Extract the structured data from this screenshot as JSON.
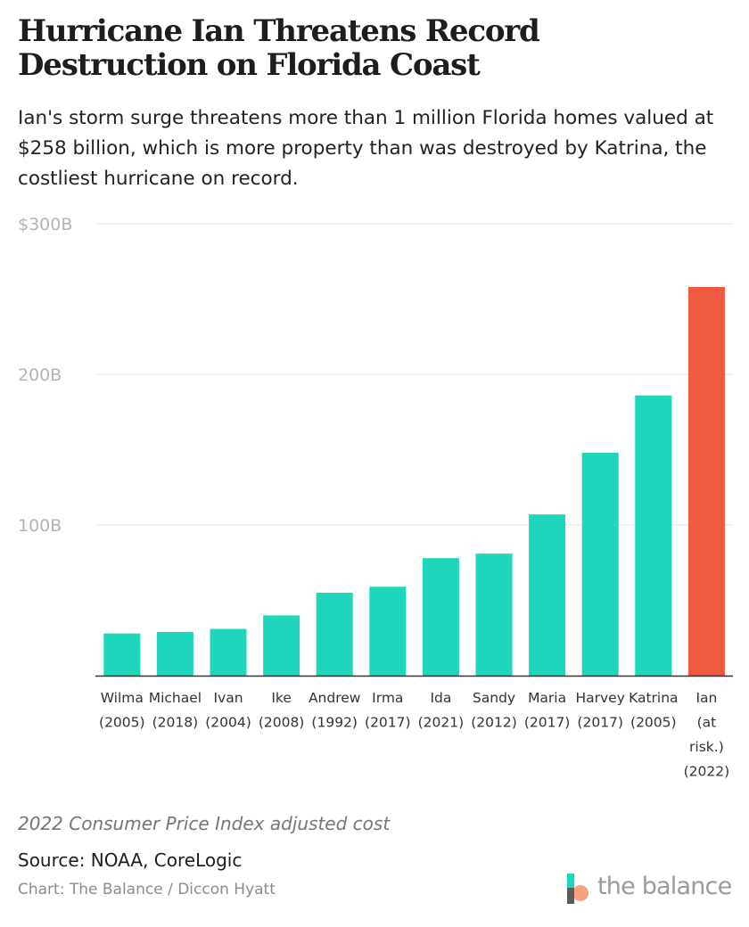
{
  "header": {
    "title": "Hurricane Ian Threatens Record Destruction on Florida Coast",
    "subtitle": "Ian's storm surge threatens more than 1 million Florida homes valued at $258 billion, which is more property than was destroyed by Katrina, the costliest hurricane on record."
  },
  "chart_data": {
    "type": "bar",
    "categories": [
      [
        "Wilma",
        "(2005)"
      ],
      [
        "Michael",
        "(2018)"
      ],
      [
        "Ivan",
        "(2004)"
      ],
      [
        "Ike",
        "(2008)"
      ],
      [
        "Andrew",
        "(1992)"
      ],
      [
        "Irma",
        "(2017)"
      ],
      [
        "Ida",
        "(2021)"
      ],
      [
        "Sandy",
        "(2012)"
      ],
      [
        "Maria",
        "(2017)"
      ],
      [
        "Harvey",
        "(2017)"
      ],
      [
        "Katrina",
        "(2005)"
      ],
      [
        "Ian",
        "(at",
        "risk.)",
        "(2022)"
      ]
    ],
    "values": [
      28,
      29,
      31,
      40,
      55,
      59,
      78,
      81,
      107,
      148,
      186,
      258
    ],
    "bar_colors": [
      "#1dd6bc",
      "#1dd6bc",
      "#1dd6bc",
      "#1dd6bc",
      "#1dd6bc",
      "#1dd6bc",
      "#1dd6bc",
      "#1dd6bc",
      "#1dd6bc",
      "#1dd6bc",
      "#1dd6bc",
      "#f05a40"
    ],
    "ylim": [
      0,
      300
    ],
    "yticks": [
      {
        "value": 100,
        "label": "100B"
      },
      {
        "value": 200,
        "label": "200B"
      },
      {
        "value": 300,
        "label": "$300B"
      }
    ],
    "grid": true,
    "gridline_color": "#e6e6e6",
    "axis_color": "#333333",
    "xlabel": "",
    "ylabel": ""
  },
  "footer": {
    "note": "2022 Consumer Price Index adjusted cost",
    "source": "Source: NOAA, CoreLogic",
    "credit": "Chart: The Balance / Diccon Hyatt"
  },
  "logo": {
    "text": "the balance",
    "icon": "the-balance-logo-icon"
  }
}
